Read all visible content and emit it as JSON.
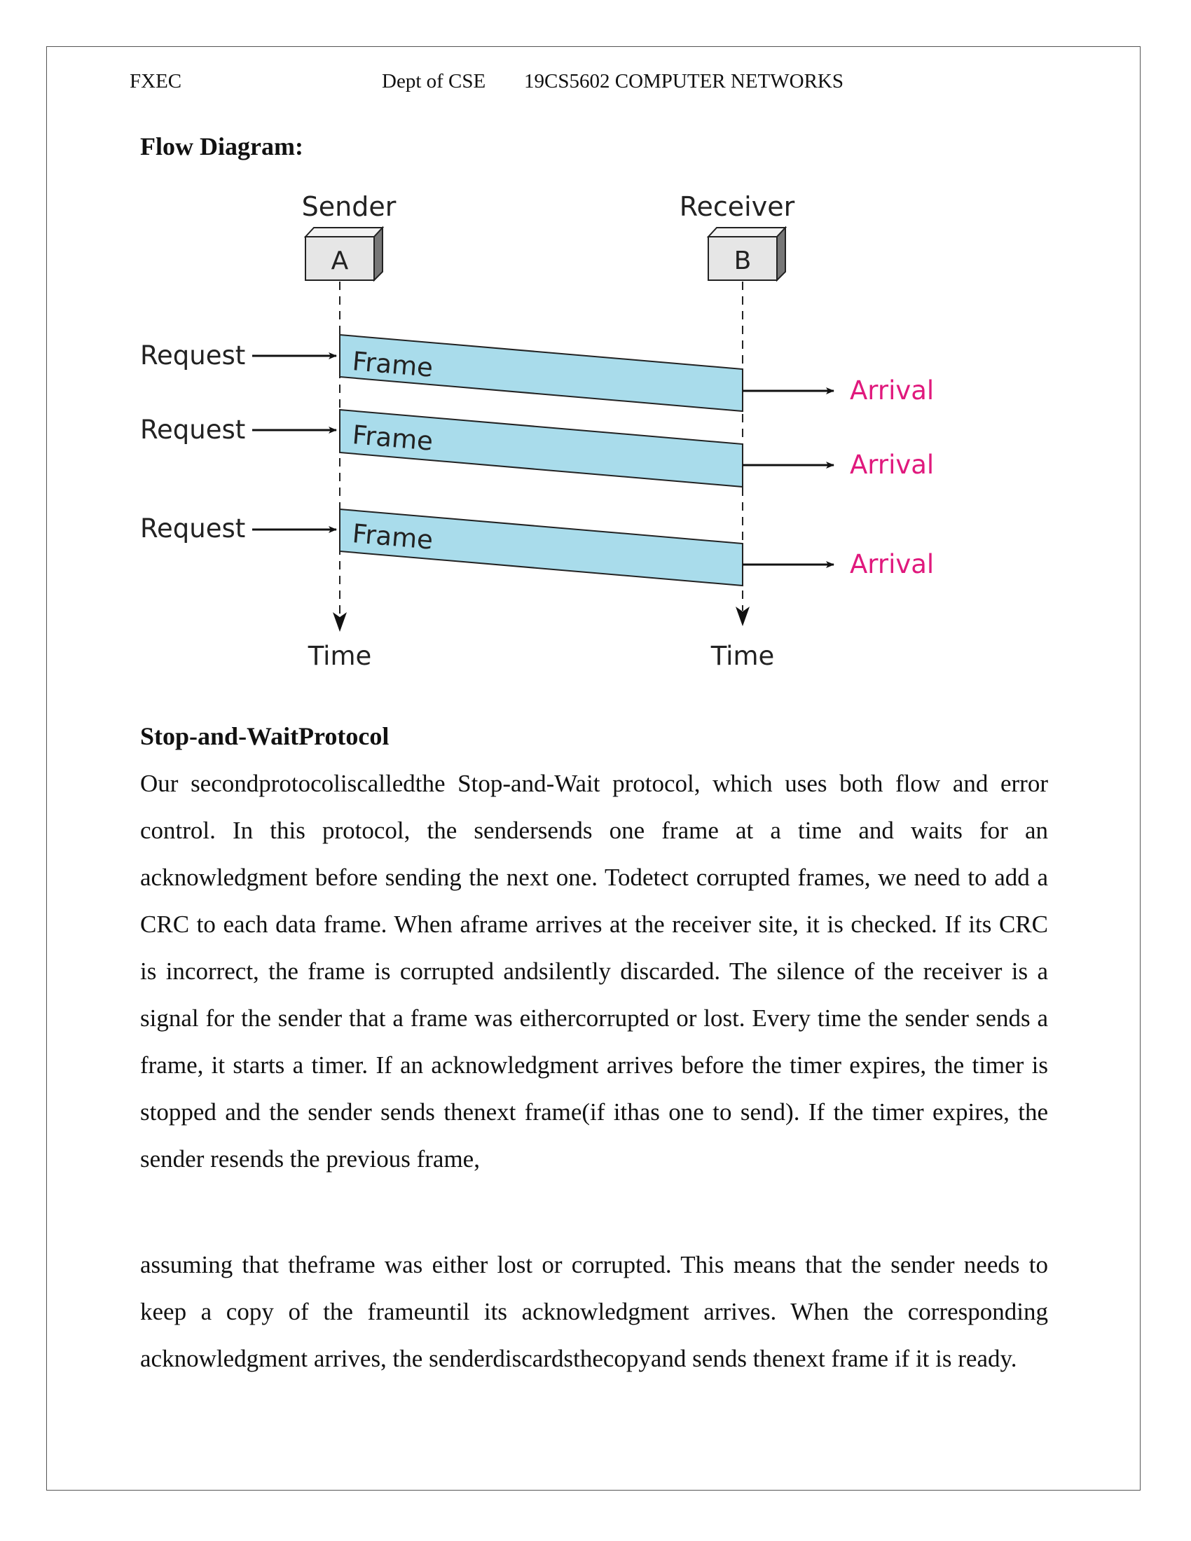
{
  "header": {
    "institution": "FXEC",
    "department": "Dept of CSE",
    "course": "19CS5602 COMPUTER NETWORKS"
  },
  "flow_diagram": {
    "heading": "Flow Diagram:",
    "sender_label": "Sender",
    "receiver_label": "Receiver",
    "sender_node": "A",
    "receiver_node": "B",
    "frames": [
      {
        "request_label": "Request",
        "frame_label": "Frame",
        "arrival_label": "Arrival"
      },
      {
        "request_label": "Request",
        "frame_label": "Frame",
        "arrival_label": "Arrival"
      },
      {
        "request_label": "Request",
        "frame_label": "Frame",
        "arrival_label": "Arrival"
      }
    ],
    "sender_time_label": "Time",
    "receiver_time_label": "Time",
    "colors": {
      "frame_fill": "#a9dceb",
      "arrival_text": "#e0197d",
      "node_fill": "#e6e6e6"
    }
  },
  "protocol": {
    "heading": "Stop-and-WaitProtocol",
    "paragraph1": "Our secondprotocoliscalledthe Stop-and-Wait protocol, which uses both flow and error control.  In this protocol, the sendersends one frame at a time and waits for an acknowledgment before sending the next one. Todetect corrupted frames, we need to add a CRC to each data frame. When aframe arrives at the receiver site, it is checked. If its CRC is incorrect, the frame is corrupted andsilently discarded. The silence of the receiver is a signal for the sender that a frame was eithercorrupted or lost. Every time the sender sends a frame, it starts a timer. If an acknowledgment arrives before the timer expires, the timer is stopped and the sender sends thenext frame(if ithas one to send). If the timer expires, the sender resends the previous frame,",
    "paragraph2": "assuming that theframe was either lost or corrupted. This means that the sender needs to keep a copy of the frameuntil its acknowledgment arrives. When the corresponding acknowledgment arrives, the senderdiscardsthecopyand sends thenext frame if it is ready."
  }
}
